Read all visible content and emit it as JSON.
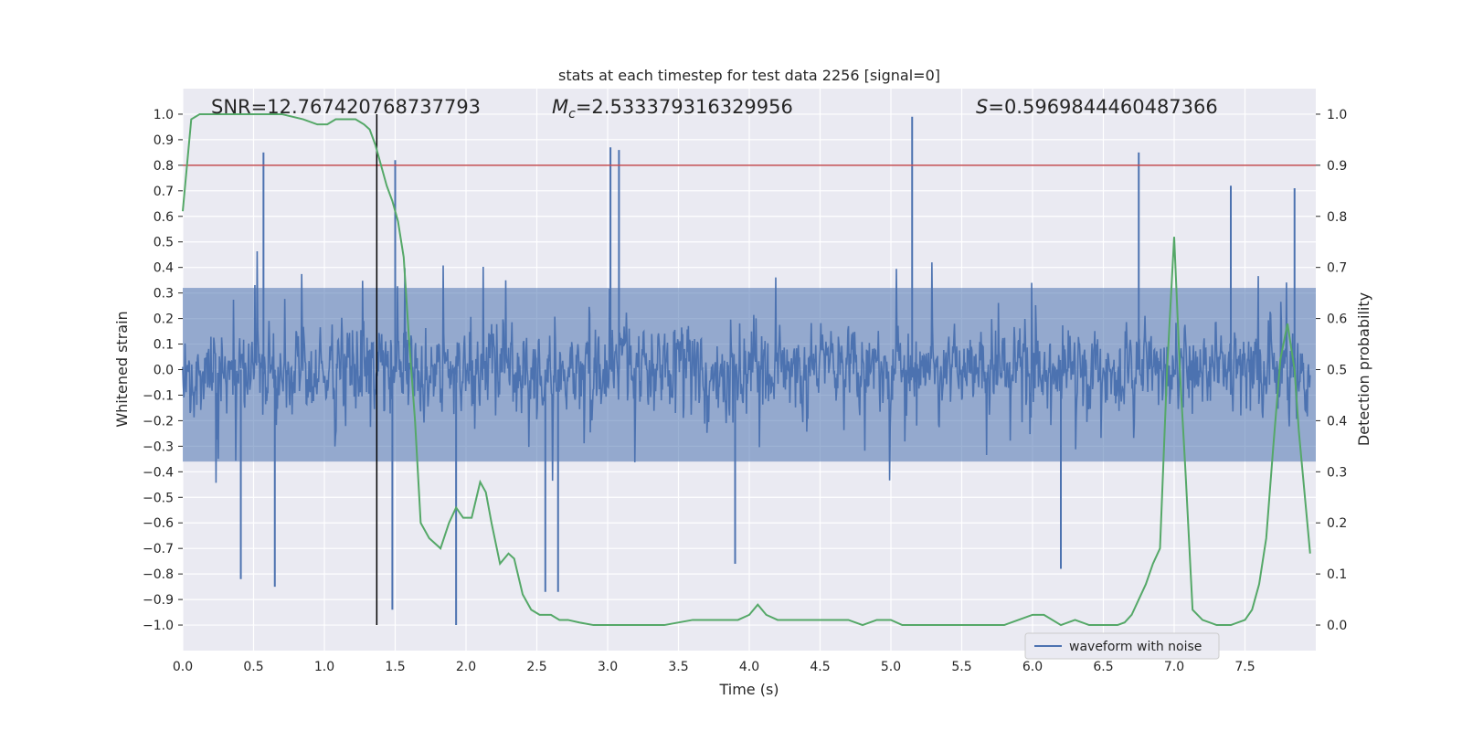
{
  "chart_data": {
    "type": "line",
    "title": "stats at each timestep for test data 2256 [signal=0]",
    "xlabel": "Time (s)",
    "ylabel_left": "Whitened strain",
    "ylabel_right": "Detection probability",
    "xlim": [
      0.0,
      8.0
    ],
    "ylim_left": [
      -1.1,
      1.1
    ],
    "ylim_right": [
      -0.05,
      1.05
    ],
    "grid": true,
    "x_ticks": [
      "0.0",
      "0.5",
      "1.0",
      "1.5",
      "2.0",
      "2.5",
      "3.0",
      "3.5",
      "4.0",
      "4.5",
      "5.0",
      "5.5",
      "6.0",
      "6.5",
      "7.0",
      "7.5"
    ],
    "y_left_ticks": [
      "1.0",
      "0.9",
      "0.8",
      "0.7",
      "0.6",
      "0.5",
      "0.4",
      "0.3",
      "0.2",
      "0.1",
      "0.0",
      "−0.1",
      "−0.2",
      "−0.3",
      "−0.4",
      "−0.5",
      "−0.6",
      "−0.7",
      "−0.8",
      "−0.9",
      "−1.0"
    ],
    "y_right_ticks": [
      "1.0",
      "0.9",
      "0.8",
      "0.7",
      "0.6",
      "0.5",
      "0.4",
      "0.3",
      "0.2",
      "0.1",
      "0.0"
    ],
    "annotations": {
      "snr": "SNR=12.767420768737793",
      "mc_symbol": "M",
      "mc_sub": "c",
      "mc_value": "=2.533379316329956",
      "s_symbol": "S",
      "s_value": "=0.5969844460487366"
    },
    "threshold_left": 0.8,
    "marker_time": 1.37,
    "legend": {
      "label": "waveform with noise",
      "location": "lower-right"
    },
    "colors": {
      "waveform": "#4c72b0",
      "probability": "#55a868",
      "threshold": "#c44e52",
      "marker": "#000000",
      "background": "#eaeaf2",
      "grid": "#ffffff"
    },
    "waveform_seed": 2256,
    "waveform_notable_peaks": [
      {
        "t": 0.57,
        "v": 0.85
      },
      {
        "t": 1.5,
        "v": 0.82
      },
      {
        "t": 3.02,
        "v": 0.87
      },
      {
        "t": 3.08,
        "v": 0.86
      },
      {
        "t": 5.15,
        "v": 0.99
      },
      {
        "t": 6.75,
        "v": 0.85
      },
      {
        "t": 7.85,
        "v": 0.71
      },
      {
        "t": 7.4,
        "v": 0.72
      }
    ],
    "waveform_notable_troughs": [
      {
        "t": 0.65,
        "v": -0.85
      },
      {
        "t": 0.41,
        "v": -0.82
      },
      {
        "t": 1.48,
        "v": -0.94
      },
      {
        "t": 1.93,
        "v": -1.0
      },
      {
        "t": 2.56,
        "v": -0.87
      },
      {
        "t": 2.65,
        "v": -0.87
      },
      {
        "t": 3.9,
        "v": -0.76
      },
      {
        "t": 6.2,
        "v": -0.78
      }
    ],
    "probability_series": {
      "name": "detection probability",
      "x": [
        0.0,
        0.06,
        0.12,
        0.2,
        0.3,
        0.5,
        0.7,
        0.85,
        0.95,
        1.02,
        1.08,
        1.15,
        1.22,
        1.28,
        1.32,
        1.36,
        1.4,
        1.44,
        1.48,
        1.52,
        1.56,
        1.6,
        1.64,
        1.68,
        1.74,
        1.82,
        1.88,
        1.93,
        1.98,
        2.04,
        2.1,
        2.14,
        2.18,
        2.24,
        2.3,
        2.34,
        2.4,
        2.46,
        2.52,
        2.6,
        2.66,
        2.72,
        2.8,
        2.9,
        3.0,
        3.2,
        3.4,
        3.6,
        3.8,
        3.92,
        4.0,
        4.06,
        4.12,
        4.2,
        4.3,
        4.4,
        4.5,
        4.6,
        4.7,
        4.8,
        4.9,
        5.0,
        5.08,
        5.2,
        5.4,
        5.6,
        5.8,
        5.9,
        6.0,
        6.08,
        6.2,
        6.3,
        6.4,
        6.5,
        6.6,
        6.65,
        6.7,
        6.75,
        6.8,
        6.85,
        6.9,
        6.95,
        7.0,
        7.04,
        7.08,
        7.13,
        7.2,
        7.3,
        7.4,
        7.5,
        7.55,
        7.6,
        7.65,
        7.7,
        7.75,
        7.8,
        7.85,
        7.88,
        7.92,
        7.96
      ],
      "values": [
        0.81,
        0.99,
        1.0,
        1.0,
        1.0,
        1.0,
        1.0,
        0.99,
        0.98,
        0.98,
        0.99,
        0.99,
        0.99,
        0.98,
        0.97,
        0.94,
        0.9,
        0.86,
        0.83,
        0.79,
        0.72,
        0.55,
        0.4,
        0.2,
        0.17,
        0.15,
        0.2,
        0.23,
        0.21,
        0.21,
        0.28,
        0.26,
        0.2,
        0.12,
        0.14,
        0.13,
        0.06,
        0.03,
        0.02,
        0.02,
        0.01,
        0.01,
        0.005,
        0.0,
        0.0,
        0.0,
        0.0,
        0.01,
        0.01,
        0.01,
        0.02,
        0.04,
        0.02,
        0.01,
        0.01,
        0.01,
        0.01,
        0.01,
        0.01,
        0.0,
        0.01,
        0.01,
        0.0,
        0.0,
        0.0,
        0.0,
        0.0,
        0.01,
        0.02,
        0.02,
        0.0,
        0.01,
        0.0,
        0.0,
        0.0,
        0.005,
        0.02,
        0.05,
        0.08,
        0.12,
        0.15,
        0.5,
        0.76,
        0.5,
        0.3,
        0.03,
        0.01,
        0.0,
        0.0,
        0.01,
        0.03,
        0.08,
        0.17,
        0.35,
        0.52,
        0.59,
        0.5,
        0.38,
        0.26,
        0.14
      ]
    }
  }
}
